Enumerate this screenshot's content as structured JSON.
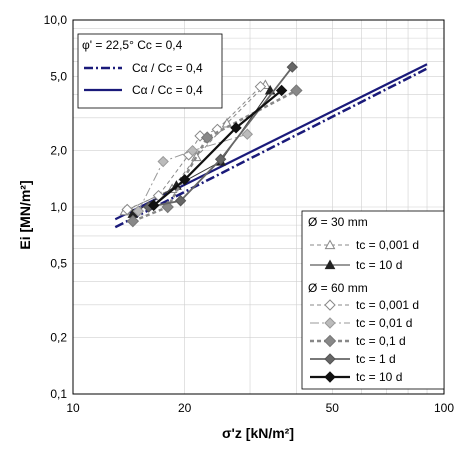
{
  "chart_data": {
    "type": "line",
    "xscale": "log",
    "yscale": "log",
    "xlim": [
      10,
      100
    ],
    "ylim": [
      0.1,
      10
    ],
    "grid": true,
    "xlabel": "σ'z [kN/m²]",
    "ylabel": "Ei [MN/m²]",
    "x_tick_labels": [
      "10",
      "20",
      "50",
      "100"
    ],
    "x_ticks": [
      10,
      20,
      50,
      100
    ],
    "y_tick_labels": [
      "10,0",
      "5,0",
      "2,0",
      "1,0",
      "0,5",
      "0,2",
      "0,1"
    ],
    "y_ticks": [
      10,
      5,
      2,
      1,
      0.5,
      0.2,
      0.1
    ],
    "legend_top": {
      "header": "φ' = 22,5°    Cc = 0,4",
      "items": [
        "Cα / Cc = 0,4",
        "Cα / Cc = 0,4"
      ]
    },
    "legend_bottom": {
      "group1_header": "Ø = 30 mm",
      "group1_items": [
        "tc = 0,001 d",
        "tc = 10 d"
      ],
      "group2_header": "Ø = 60 mm",
      "group2_items": [
        "tc = 0,001 d",
        "tc = 0,01 d",
        "tc = 0,1 d",
        "tc = 1 d",
        "tc = 10 d"
      ]
    },
    "series": [
      {
        "x": [
          13,
          90
        ],
        "y": [
          0.78,
          5.5
        ],
        "color": "#1a1a7a",
        "dash": "dashdot",
        "marker": "none",
        "width": 2.5
      },
      {
        "x": [
          13,
          90
        ],
        "y": [
          0.86,
          5.8
        ],
        "color": "#1a1a7a",
        "dash": "solid",
        "marker": "none",
        "width": 2.2
      },
      {
        "x": [
          13.8,
          18.5,
          21.5,
          26,
          33
        ],
        "y": [
          0.95,
          1.25,
          1.85,
          2.8,
          4.5
        ],
        "color": "#888888",
        "dash": "dashed",
        "marker": "triangle-open",
        "width": 1
      },
      {
        "x": [
          14.5,
          19,
          25,
          34
        ],
        "y": [
          0.92,
          1.3,
          1.75,
          4.2
        ],
        "color": "#333333",
        "dash": "solid",
        "marker": "triangle-filled",
        "width": 1
      },
      {
        "x": [
          14,
          17,
          20.5,
          22,
          24.5,
          32
        ],
        "y": [
          0.97,
          1.15,
          1.9,
          2.4,
          2.6,
          4.4
        ],
        "color": "#888888",
        "dash": "dashed",
        "marker": "diamond-open",
        "width": 1
      },
      {
        "x": [
          15,
          17.5,
          21,
          29.5
        ],
        "y": [
          0.95,
          1.75,
          2.0,
          2.45
        ],
        "color": "#999999",
        "dash": "dashdot",
        "marker": "diamond-gray",
        "width": 1
      },
      {
        "x": [
          14.5,
          18,
          23,
          40
        ],
        "y": [
          0.84,
          1.0,
          2.35,
          4.2
        ],
        "color": "#888888",
        "dash": "dashed",
        "marker": "diamond-gray-large",
        "width": 2.5
      },
      {
        "x": [
          16,
          19.5,
          25,
          39
        ],
        "y": [
          1.0,
          1.08,
          1.8,
          5.6
        ],
        "color": "#666666",
        "dash": "solid",
        "marker": "diamond-darkgray",
        "width": 1.8
      },
      {
        "x": [
          16.5,
          20,
          27.5,
          36.5
        ],
        "y": [
          1.02,
          1.4,
          2.65,
          4.2
        ],
        "color": "#111111",
        "dash": "solid",
        "marker": "diamond-black",
        "width": 2.2
      }
    ]
  }
}
